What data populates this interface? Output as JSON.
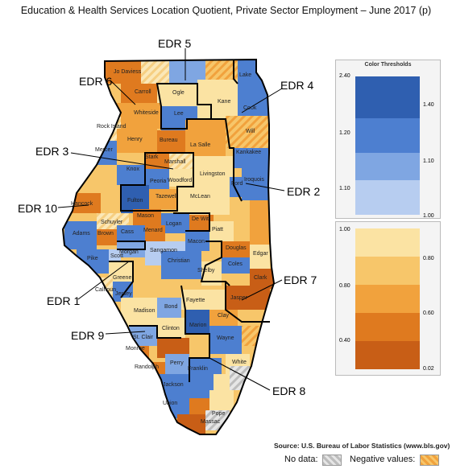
{
  "title": "Education & Health Services Location Quotient, Private Sector Employment – June 2017 (p)",
  "colors": {
    "blue_dark": "#2f5fb0",
    "blue_mid": "#4d7fd0",
    "blue_light": "#7fa6e2",
    "blue_pale": "#b7cdf0",
    "orange_pale": "#fbe3a3",
    "orange_light": "#f7c66a",
    "orange_mid": "#f1a23d",
    "orange_dark": "#df7a1f",
    "orange_deep": "#c85e16",
    "nodata": "#cfcfcf",
    "border_edr": "#000000",
    "county_border": "#ffffff"
  },
  "legend": {
    "title": "Color Thresholds",
    "blue_ticks_left": [
      "2.40",
      "1.20",
      "1.10"
    ],
    "blue_ticks_right": [
      "1.40",
      "1.10",
      "1.00"
    ],
    "orange_ticks_left": [
      "1.00",
      "0.80",
      "0.40"
    ],
    "orange_ticks_right": [
      "0.80",
      "0.60",
      "0.02"
    ]
  },
  "edr_labels": [
    {
      "id": "edr5",
      "text": "EDR 5"
    },
    {
      "id": "edr6",
      "text": "EDR 6"
    },
    {
      "id": "edr4",
      "text": "EDR 4"
    },
    {
      "id": "edr3",
      "text": "EDR 3"
    },
    {
      "id": "edr2",
      "text": "EDR 2"
    },
    {
      "id": "edr10",
      "text": "EDR 10"
    },
    {
      "id": "edr7",
      "text": "EDR 7"
    },
    {
      "id": "edr1",
      "text": "EDR 1"
    },
    {
      "id": "edr9",
      "text": "EDR 9"
    },
    {
      "id": "edr8",
      "text": "EDR 8"
    }
  ],
  "counties": [
    "Jo Daviess",
    "Carroll",
    "Ogle",
    "Lake",
    "Kane",
    "Cook",
    "Whiteside",
    "Lee",
    "Rock Island",
    "Will",
    "Henry",
    "Bureau",
    "La Salle",
    "Mercer",
    "Kankakee",
    "Stark",
    "Marshall",
    "Knox",
    "Livingston",
    "Peoria",
    "Woodford",
    "Iroquois",
    "Ford",
    "Fulton",
    "Tazewell",
    "McLean",
    "Hancock",
    "Mason",
    "Schuyler",
    "Logan",
    "De Witt",
    "Menard",
    "Brown",
    "Piatt",
    "Adams",
    "Cass",
    "Macon",
    "Douglas",
    "Morgan",
    "Sangamon",
    "Edgar",
    "Scott",
    "Coles",
    "Pike",
    "Christian",
    "Shelby",
    "Clark",
    "Greene",
    "Jersey",
    "Calhoun",
    "Jasper",
    "Fayette",
    "Madison",
    "Bond",
    "Clay",
    "Marion",
    "Clinton",
    "St. Clair",
    "Wayne",
    "Monroe",
    "White",
    "Perry",
    "Randolph",
    "Franklin",
    "Jackson",
    "Union",
    "Pope",
    "Massac"
  ],
  "footer": {
    "source": "Source: U.S. Bureau of Labor Statistics (www.bls.gov)",
    "no_data_label": "No data:",
    "negative_label": "Negative values:"
  }
}
